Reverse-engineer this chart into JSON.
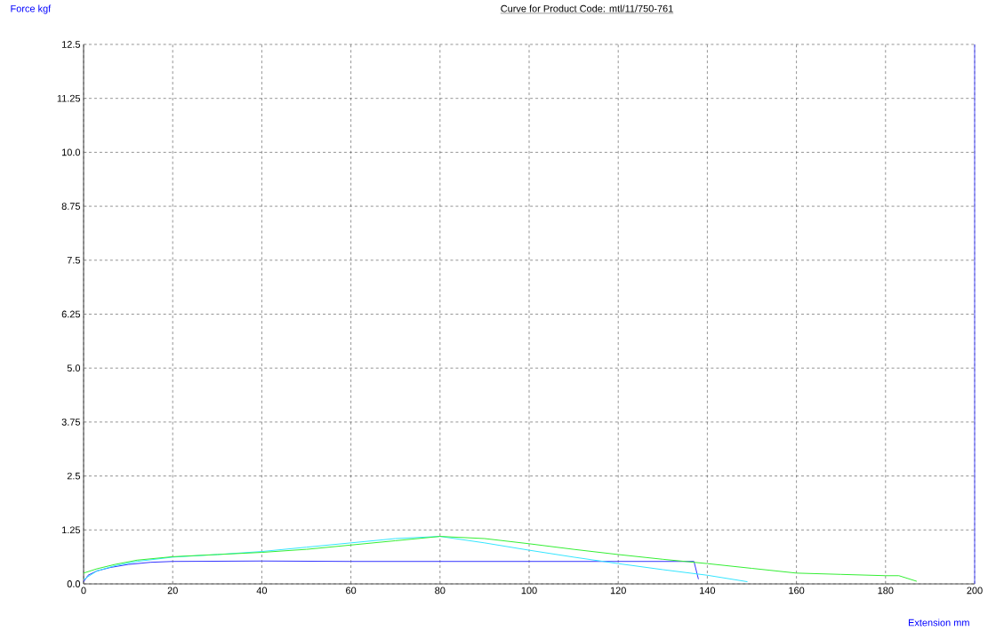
{
  "chart_data": {
    "type": "line",
    "title": "Curve for Product Code: mtl/11/750-761",
    "xlabel": "Extension  mm",
    "ylabel": "Force  kgf",
    "xlim": [
      0,
      200
    ],
    "xticks": [
      0,
      20,
      40,
      60,
      80,
      100,
      120,
      140,
      160,
      180,
      200
    ],
    "ylim": [
      0,
      12.5
    ],
    "yticks": [
      {
        "value": 0,
        "label": "0.0"
      },
      1.25,
      2.5,
      3.75,
      {
        "value": 5,
        "label": "5.0"
      },
      6.25,
      7.5,
      8.75,
      {
        "value": 10,
        "label": "10.0"
      },
      11.25,
      12.5
    ],
    "grid": true,
    "marker": "none",
    "line_style": "solid",
    "series": [
      {
        "color": "#3333ff",
        "x": [
          0,
          1,
          3,
          6,
          10,
          15,
          20,
          40,
          60,
          80,
          100,
          120,
          137,
          138
        ],
        "values": [
          0.05,
          0.2,
          0.3,
          0.38,
          0.45,
          0.5,
          0.52,
          0.53,
          0.52,
          0.52,
          0.52,
          0.52,
          0.52,
          0.11
        ]
      },
      {
        "color": "#33e5ff",
        "x": [
          0,
          3,
          7,
          12,
          20,
          30,
          40,
          50,
          60,
          70,
          80,
          90,
          100,
          110,
          120,
          130,
          140,
          149
        ],
        "values": [
          0.1,
          0.3,
          0.42,
          0.52,
          0.62,
          0.68,
          0.75,
          0.85,
          0.95,
          1.05,
          1.1,
          0.95,
          0.78,
          0.62,
          0.47,
          0.33,
          0.2,
          0.05
        ]
      },
      {
        "color": "#33ee33",
        "x": [
          0,
          3,
          7,
          12,
          20,
          30,
          40,
          50,
          60,
          70,
          80,
          90,
          100,
          110,
          120,
          130,
          140,
          150,
          160,
          170,
          180,
          183,
          187
        ],
        "values": [
          0.25,
          0.35,
          0.45,
          0.55,
          0.63,
          0.68,
          0.73,
          0.8,
          0.9,
          1.0,
          1.1,
          1.05,
          0.93,
          0.8,
          0.68,
          0.57,
          0.47,
          0.36,
          0.25,
          0.22,
          0.19,
          0.19,
          0.06
        ]
      }
    ]
  }
}
